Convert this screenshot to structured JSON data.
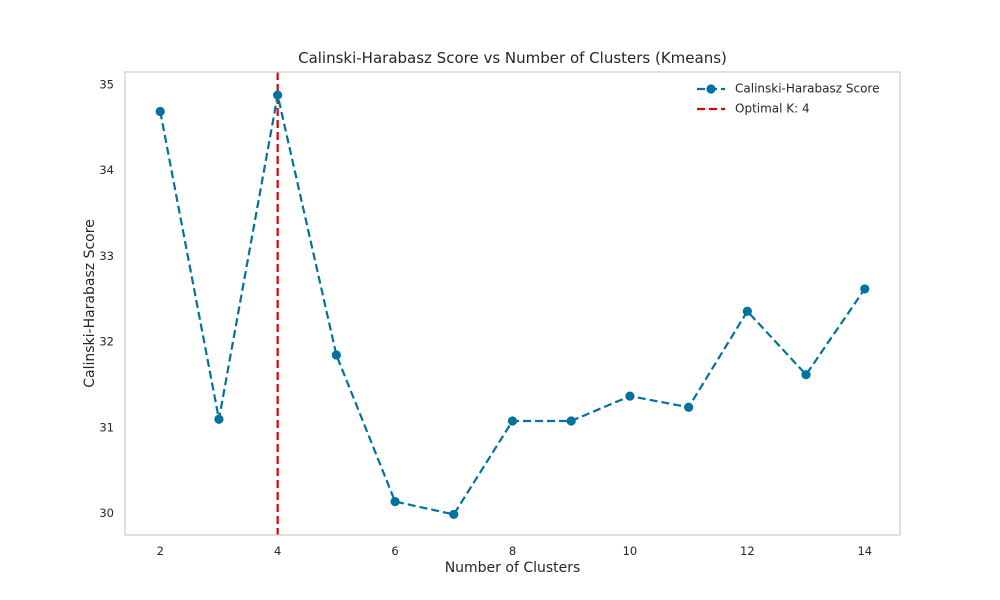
{
  "chart_data": {
    "type": "line",
    "title": "Calinski-Harabasz Score vs Number of Clusters (Kmeans)",
    "xlabel": "Number of Clusters",
    "ylabel": "Calinski-Harabasz Score",
    "xlim": [
      1.4,
      14.6
    ],
    "ylim": [
      29.75,
      35.15
    ],
    "xticks": [
      2,
      4,
      6,
      8,
      10,
      12,
      14
    ],
    "yticks": [
      30,
      31,
      32,
      33,
      34,
      35
    ],
    "grid": false,
    "legend_position": "top-right",
    "series": [
      {
        "name": "Calinski-Harabasz Score",
        "color": "#0072a0",
        "line_style": "dashed",
        "marker": "circle",
        "x": [
          2,
          3,
          4,
          5,
          6,
          7,
          8,
          9,
          10,
          11,
          12,
          13,
          14
        ],
        "y": [
          34.69,
          31.1,
          34.88,
          31.85,
          30.14,
          29.99,
          31.08,
          31.08,
          31.37,
          31.24,
          32.36,
          31.62,
          32.62
        ]
      }
    ],
    "annotations": [
      {
        "type": "vline",
        "x": 4,
        "label": "Optimal K: 4",
        "color": "#e00000",
        "line_style": "dashed"
      }
    ]
  }
}
